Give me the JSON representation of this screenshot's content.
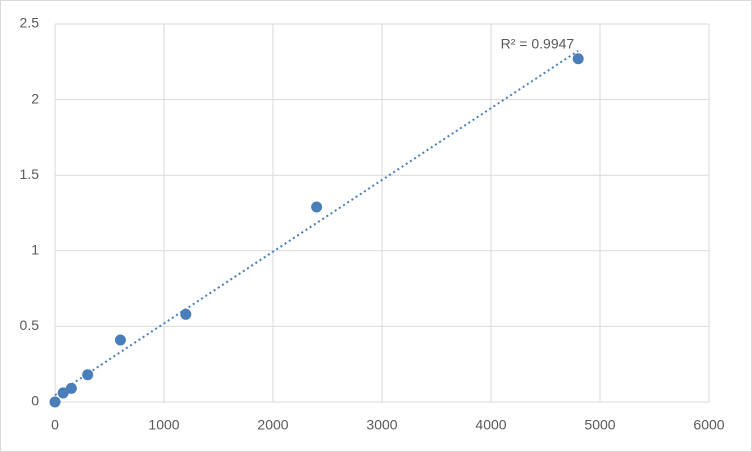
{
  "chart_data": {
    "type": "scatter",
    "x": [
      0,
      75,
      150,
      300,
      600,
      1200,
      2400,
      4800
    ],
    "values": [
      0,
      0.06,
      0.09,
      0.18,
      0.41,
      0.58,
      1.29,
      2.27
    ],
    "color": "#4a7ebb",
    "trendline": "linear",
    "annotation": "R² = 0.9947",
    "xlim": [
      0,
      6000
    ],
    "xticks": [
      0,
      1000,
      2000,
      3000,
      4000,
      5000,
      6000
    ],
    "ylim": [
      0,
      2.5
    ],
    "yticks": [
      0,
      0.5,
      1,
      1.5,
      2,
      2.5
    ],
    "grid": true
  }
}
